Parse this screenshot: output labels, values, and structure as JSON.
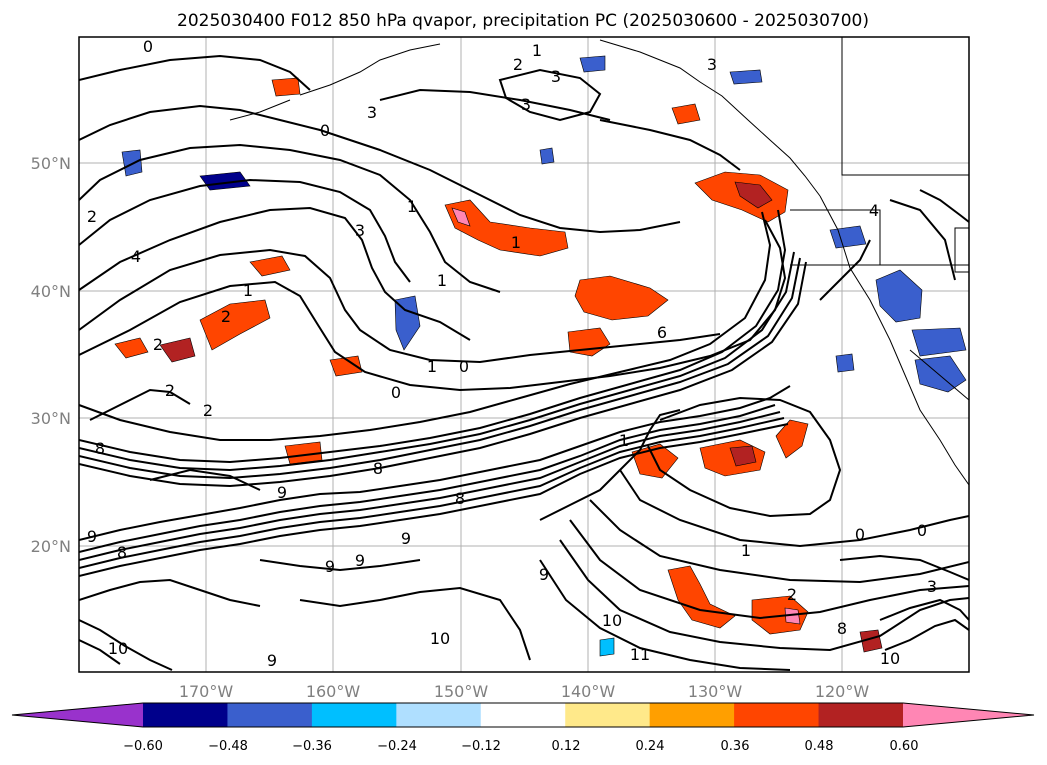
{
  "map": {
    "title": "2025030400 F012 850 hPa qvapor, precipitation PC (2025030600 - 2025030700)",
    "lat_labels": [
      "50°N",
      "40°N",
      "30°N",
      "20°N"
    ],
    "lon_labels": [
      "170°W",
      "160°W",
      "150°W",
      "140°W",
      "130°W",
      "120°W"
    ],
    "contour_labels": [
      "0",
      "1",
      "2",
      "3",
      "3",
      "3",
      "0",
      "3",
      "1",
      "4",
      "1",
      "2",
      "4",
      "1",
      "0",
      "1",
      "6",
      "2",
      "0",
      "2",
      "2",
      "8",
      "8",
      "9",
      "8",
      "9",
      "9",
      "9",
      "1",
      "0",
      "1",
      "0",
      "8",
      "2",
      "10",
      "11",
      "3",
      "10",
      "10",
      "1",
      "2",
      "8",
      "9",
      "9",
      "10",
      "3",
      "9"
    ],
    "colorbar": {
      "ticks": [
        "−0.60",
        "−0.48",
        "−0.36",
        "−0.24",
        "−0.12",
        "0.12",
        "0.24",
        "0.36",
        "0.48",
        "0.60"
      ],
      "colors": [
        "#9932cc",
        "#00008b",
        "#3a5fcd",
        "#00bfff",
        "#afdfff",
        "#ffffff",
        "#ffe98a",
        "#ff9f00",
        "#ff4500",
        "#b22222",
        "#ff86b4"
      ]
    }
  }
}
